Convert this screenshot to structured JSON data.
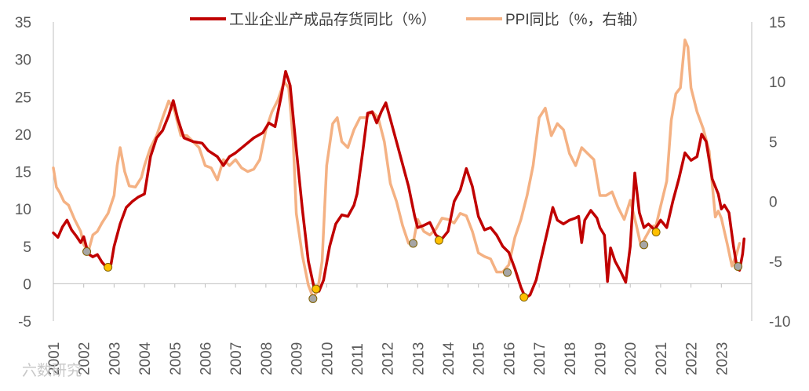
{
  "chart_data": {
    "type": "line",
    "title": "",
    "legend_position": "top",
    "left_axis": {
      "min": -5,
      "max": 35,
      "ticks": [
        "35",
        "30",
        "25",
        "20",
        "15",
        "10",
        "5",
        "0",
        "-5"
      ],
      "tick_values": [
        35,
        30,
        25,
        20,
        15,
        10,
        5,
        0,
        -5
      ]
    },
    "right_axis": {
      "min": -10,
      "max": 15,
      "ticks": [
        "15",
        "10",
        "5",
        "0",
        "-5",
        "-10"
      ],
      "tick_values": [
        15,
        10,
        5,
        0,
        -5,
        -10
      ]
    },
    "x_axis": {
      "min": 2001,
      "max": 2024,
      "tick_labels": [
        "2001",
        "2002",
        "2003",
        "2004",
        "2005",
        "2006",
        "2007",
        "2008",
        "2009",
        "2010",
        "2011",
        "2012",
        "2013",
        "2014",
        "2015",
        "2016",
        "2017",
        "2018",
        "2019",
        "2020",
        "2021",
        "2022",
        "2023"
      ]
    },
    "series": [
      {
        "name": "工业企业产成品存货同比（%）",
        "axis": "left",
        "color": "#c00000",
        "points": [
          [
            2001.0,
            6.8
          ],
          [
            2001.15,
            6.2
          ],
          [
            2001.3,
            7.6
          ],
          [
            2001.45,
            8.5
          ],
          [
            2001.6,
            7.2
          ],
          [
            2001.75,
            6.4
          ],
          [
            2001.9,
            5.5
          ],
          [
            2002.0,
            6.3
          ],
          [
            2002.15,
            4.0
          ],
          [
            2002.3,
            3.6
          ],
          [
            2002.45,
            3.9
          ],
          [
            2002.6,
            2.9
          ],
          [
            2002.75,
            2.2
          ],
          [
            2002.9,
            2.6
          ],
          [
            2003.0,
            5.0
          ],
          [
            2003.2,
            8.0
          ],
          [
            2003.4,
            10.2
          ],
          [
            2003.6,
            11.0
          ],
          [
            2003.8,
            11.6
          ],
          [
            2004.0,
            12.0
          ],
          [
            2004.2,
            17.0
          ],
          [
            2004.4,
            19.5
          ],
          [
            2004.6,
            20.5
          ],
          [
            2004.8,
            22.5
          ],
          [
            2004.95,
            24.5
          ],
          [
            2005.1,
            22.0
          ],
          [
            2005.3,
            19.5
          ],
          [
            2005.6,
            19.0
          ],
          [
            2005.9,
            18.8
          ],
          [
            2006.1,
            17.8
          ],
          [
            2006.4,
            17.0
          ],
          [
            2006.6,
            15.8
          ],
          [
            2006.8,
            17.0
          ],
          [
            2007.0,
            17.5
          ],
          [
            2007.3,
            18.5
          ],
          [
            2007.6,
            19.5
          ],
          [
            2007.9,
            20.2
          ],
          [
            2008.1,
            21.5
          ],
          [
            2008.3,
            21.0
          ],
          [
            2008.5,
            25.0
          ],
          [
            2008.65,
            28.4
          ],
          [
            2008.8,
            26.5
          ],
          [
            2009.0,
            18.0
          ],
          [
            2009.2,
            10.0
          ],
          [
            2009.4,
            3.0
          ],
          [
            2009.6,
            -0.8
          ],
          [
            2009.75,
            -1.0
          ],
          [
            2009.9,
            0.5
          ],
          [
            2010.1,
            5.0
          ],
          [
            2010.3,
            8.0
          ],
          [
            2010.5,
            9.2
          ],
          [
            2010.7,
            9.0
          ],
          [
            2010.9,
            10.5
          ],
          [
            2011.0,
            12.0
          ],
          [
            2011.2,
            18.0
          ],
          [
            2011.35,
            22.8
          ],
          [
            2011.5,
            23.0
          ],
          [
            2011.65,
            21.5
          ],
          [
            2011.8,
            23.0
          ],
          [
            2011.95,
            24.2
          ],
          [
            2012.1,
            22.0
          ],
          [
            2012.3,
            19.0
          ],
          [
            2012.5,
            16.0
          ],
          [
            2012.7,
            13.0
          ],
          [
            2012.9,
            9.0
          ],
          [
            2013.0,
            7.5
          ],
          [
            2013.2,
            7.8
          ],
          [
            2013.4,
            8.2
          ],
          [
            2013.6,
            6.5
          ],
          [
            2013.8,
            6.0
          ],
          [
            2014.0,
            7.0
          ],
          [
            2014.2,
            11.0
          ],
          [
            2014.4,
            12.5
          ],
          [
            2014.6,
            15.4
          ],
          [
            2014.8,
            13.0
          ],
          [
            2015.0,
            9.0
          ],
          [
            2015.2,
            7.2
          ],
          [
            2015.4,
            7.5
          ],
          [
            2015.6,
            6.5
          ],
          [
            2015.8,
            5.0
          ],
          [
            2016.0,
            4.2
          ],
          [
            2016.2,
            2.0
          ],
          [
            2016.4,
            -0.5
          ],
          [
            2016.55,
            -1.9
          ],
          [
            2016.7,
            -1.5
          ],
          [
            2016.9,
            0.5
          ],
          [
            2017.1,
            4.0
          ],
          [
            2017.3,
            7.5
          ],
          [
            2017.45,
            10.2
          ],
          [
            2017.6,
            8.5
          ],
          [
            2017.8,
            8.0
          ],
          [
            2018.0,
            8.5
          ],
          [
            2018.2,
            8.8
          ],
          [
            2018.3,
            9.0
          ],
          [
            2018.4,
            5.5
          ],
          [
            2018.5,
            8.5
          ],
          [
            2018.7,
            9.8
          ],
          [
            2018.9,
            8.8
          ],
          [
            2019.0,
            7.5
          ],
          [
            2019.15,
            6.5
          ],
          [
            2019.25,
            0.3
          ],
          [
            2019.35,
            4.8
          ],
          [
            2019.5,
            3.0
          ],
          [
            2019.7,
            1.5
          ],
          [
            2019.85,
            0.2
          ],
          [
            2020.0,
            5.0
          ],
          [
            2020.15,
            14.8
          ],
          [
            2020.3,
            9.5
          ],
          [
            2020.45,
            7.5
          ],
          [
            2020.6,
            8.0
          ],
          [
            2020.8,
            7.2
          ],
          [
            2021.0,
            8.5
          ],
          [
            2021.2,
            7.5
          ],
          [
            2021.4,
            11.0
          ],
          [
            2021.6,
            14.0
          ],
          [
            2021.8,
            17.5
          ],
          [
            2022.0,
            16.5
          ],
          [
            2022.2,
            17.0
          ],
          [
            2022.35,
            20.0
          ],
          [
            2022.5,
            19.0
          ],
          [
            2022.7,
            14.0
          ],
          [
            2022.9,
            12.0
          ],
          [
            2023.0,
            10.0
          ],
          [
            2023.1,
            10.5
          ],
          [
            2023.25,
            9.5
          ],
          [
            2023.4,
            5.0
          ],
          [
            2023.5,
            2.5
          ],
          [
            2023.6,
            1.8
          ],
          [
            2023.7,
            4.0
          ],
          [
            2023.75,
            6.0
          ]
        ]
      },
      {
        "name": "PPI同比（%，右轴）",
        "axis": "right",
        "color": "#f4b183",
        "points": [
          [
            2001.0,
            2.8
          ],
          [
            2001.1,
            1.2
          ],
          [
            2001.2,
            0.8
          ],
          [
            2001.35,
            0.0
          ],
          [
            2001.5,
            -0.3
          ],
          [
            2001.7,
            -1.5
          ],
          [
            2001.9,
            -2.5
          ],
          [
            2002.0,
            -3.6
          ],
          [
            2002.15,
            -4.2
          ],
          [
            2002.3,
            -2.8
          ],
          [
            2002.45,
            -2.5
          ],
          [
            2002.6,
            -1.8
          ],
          [
            2002.8,
            -1.0
          ],
          [
            2003.0,
            0.5
          ],
          [
            2003.1,
            3.0
          ],
          [
            2003.2,
            4.5
          ],
          [
            2003.35,
            2.5
          ],
          [
            2003.5,
            1.3
          ],
          [
            2003.7,
            1.2
          ],
          [
            2003.9,
            2.0
          ],
          [
            2004.0,
            3.0
          ],
          [
            2004.2,
            4.5
          ],
          [
            2004.4,
            5.5
          ],
          [
            2004.6,
            7.0
          ],
          [
            2004.8,
            8.4
          ],
          [
            2005.0,
            7.5
          ],
          [
            2005.2,
            5.5
          ],
          [
            2005.4,
            5.5
          ],
          [
            2005.6,
            5.0
          ],
          [
            2005.8,
            4.5
          ],
          [
            2006.0,
            3.0
          ],
          [
            2006.2,
            2.8
          ],
          [
            2006.4,
            1.8
          ],
          [
            2006.6,
            3.5
          ],
          [
            2006.8,
            3.0
          ],
          [
            2007.0,
            3.5
          ],
          [
            2007.2,
            2.8
          ],
          [
            2007.4,
            2.5
          ],
          [
            2007.6,
            2.7
          ],
          [
            2007.8,
            3.5
          ],
          [
            2008.0,
            6.0
          ],
          [
            2008.2,
            7.5
          ],
          [
            2008.4,
            8.5
          ],
          [
            2008.6,
            10.0
          ],
          [
            2008.75,
            9.5
          ],
          [
            2008.9,
            5.0
          ],
          [
            2009.0,
            -1.0
          ],
          [
            2009.2,
            -4.5
          ],
          [
            2009.4,
            -7.0
          ],
          [
            2009.55,
            -8.0
          ],
          [
            2009.7,
            -7.5
          ],
          [
            2009.85,
            -5.0
          ],
          [
            2010.0,
            3.0
          ],
          [
            2010.2,
            6.5
          ],
          [
            2010.35,
            7.0
          ],
          [
            2010.5,
            5.0
          ],
          [
            2010.7,
            4.5
          ],
          [
            2010.9,
            6.0
          ],
          [
            2011.1,
            7.0
          ],
          [
            2011.3,
            7.0
          ],
          [
            2011.5,
            7.5
          ],
          [
            2011.7,
            7.0
          ],
          [
            2011.9,
            5.0
          ],
          [
            2012.1,
            1.5
          ],
          [
            2012.3,
            0.0
          ],
          [
            2012.5,
            -2.0
          ],
          [
            2012.7,
            -3.5
          ],
          [
            2012.85,
            -3.5
          ],
          [
            2013.0,
            -1.5
          ],
          [
            2013.2,
            -2.5
          ],
          [
            2013.4,
            -2.8
          ],
          [
            2013.6,
            -2.3
          ],
          [
            2013.8,
            -1.4
          ],
          [
            2014.0,
            -1.5
          ],
          [
            2014.2,
            -1.8
          ],
          [
            2014.4,
            -1.0
          ],
          [
            2014.6,
            -1.2
          ],
          [
            2014.8,
            -2.5
          ],
          [
            2015.0,
            -4.3
          ],
          [
            2015.2,
            -4.6
          ],
          [
            2015.4,
            -4.8
          ],
          [
            2015.6,
            -5.9
          ],
          [
            2015.8,
            -5.9
          ],
          [
            2016.0,
            -5.3
          ],
          [
            2016.2,
            -3.0
          ],
          [
            2016.4,
            -1.5
          ],
          [
            2016.6,
            0.5
          ],
          [
            2016.8,
            3.0
          ],
          [
            2017.0,
            7.0
          ],
          [
            2017.2,
            7.8
          ],
          [
            2017.4,
            5.5
          ],
          [
            2017.6,
            6.5
          ],
          [
            2017.8,
            6.0
          ],
          [
            2018.0,
            4.0
          ],
          [
            2018.2,
            3.0
          ],
          [
            2018.4,
            4.5
          ],
          [
            2018.6,
            4.0
          ],
          [
            2018.8,
            3.5
          ],
          [
            2019.0,
            0.5
          ],
          [
            2019.2,
            0.5
          ],
          [
            2019.4,
            0.8
          ],
          [
            2019.6,
            -0.5
          ],
          [
            2019.8,
            -1.5
          ],
          [
            2020.0,
            0.1
          ],
          [
            2020.2,
            -2.0
          ],
          [
            2020.35,
            -3.7
          ],
          [
            2020.5,
            -3.0
          ],
          [
            2020.7,
            -2.1
          ],
          [
            2020.85,
            -2.0
          ],
          [
            2021.0,
            -0.4
          ],
          [
            2021.2,
            1.7
          ],
          [
            2021.35,
            6.8
          ],
          [
            2021.5,
            9.0
          ],
          [
            2021.65,
            9.5
          ],
          [
            2021.8,
            13.5
          ],
          [
            2021.9,
            12.9
          ],
          [
            2022.0,
            9.5
          ],
          [
            2022.2,
            7.5
          ],
          [
            2022.4,
            6.1
          ],
          [
            2022.6,
            4.2
          ],
          [
            2022.8,
            -1.3
          ],
          [
            2022.9,
            -0.8
          ],
          [
            2023.0,
            -1.4
          ],
          [
            2023.2,
            -3.6
          ],
          [
            2023.35,
            -5.4
          ],
          [
            2023.5,
            -4.4
          ],
          [
            2023.6,
            -3.5
          ]
        ]
      }
    ],
    "marker_points": [
      {
        "x": 2002.1,
        "y": 4.3,
        "color": "#a6a6a6"
      },
      {
        "x": 2002.8,
        "y": 2.2,
        "color": "#ffc000"
      },
      {
        "x": 2009.55,
        "y": -2.0,
        "color": "#a6a6a6"
      },
      {
        "x": 2009.65,
        "y": -0.7,
        "color": "#ffc000"
      },
      {
        "x": 2012.85,
        "y": 5.4,
        "color": "#a6a6a6"
      },
      {
        "x": 2013.7,
        "y": 5.8,
        "color": "#ffc000"
      },
      {
        "x": 2015.95,
        "y": 1.5,
        "color": "#a6a6a6"
      },
      {
        "x": 2016.5,
        "y": -1.8,
        "color": "#ffc000"
      },
      {
        "x": 2020.45,
        "y": 5.2,
        "color": "#a6a6a6"
      },
      {
        "x": 2020.85,
        "y": 6.9,
        "color": "#ffc000"
      },
      {
        "x": 2023.55,
        "y": 2.3,
        "color": "#a6a6a6"
      }
    ],
    "watermark": "六数研究"
  }
}
